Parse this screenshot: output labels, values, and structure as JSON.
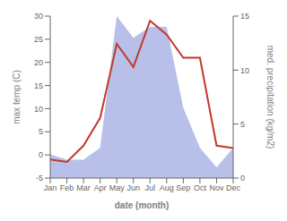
{
  "chart_data": {
    "type": "line",
    "categories": [
      "Jan",
      "Feb",
      "Mar",
      "Apr",
      "May",
      "Jun",
      "Jul",
      "Aug",
      "Sep",
      "Oct",
      "Nov",
      "Dec"
    ],
    "xlabel": "date (month)",
    "ylabel": "max temp (C)",
    "y2label": "med. precipitation (kg/m2)",
    "series": [
      {
        "type": "area",
        "color": "#b8bfe8",
        "axis": "y2",
        "values": [
          2.2,
          1.7,
          1.7,
          2.8,
          15,
          13,
          14,
          14,
          6.5,
          2.8,
          1.0,
          2.8
        ]
      },
      {
        "type": "line",
        "color": "#c0392b",
        "values": [
          -1,
          -1.5,
          2,
          8,
          24,
          19,
          29,
          26,
          21,
          21,
          2,
          1.5
        ]
      }
    ],
    "ylim": [
      -5,
      30
    ],
    "yticks": [
      -5,
      0,
      5,
      10,
      15,
      20,
      25,
      30
    ],
    "y2lim": [
      0,
      15
    ],
    "y2ticks": [
      0,
      5,
      10,
      15
    ],
    "grid": false
  }
}
